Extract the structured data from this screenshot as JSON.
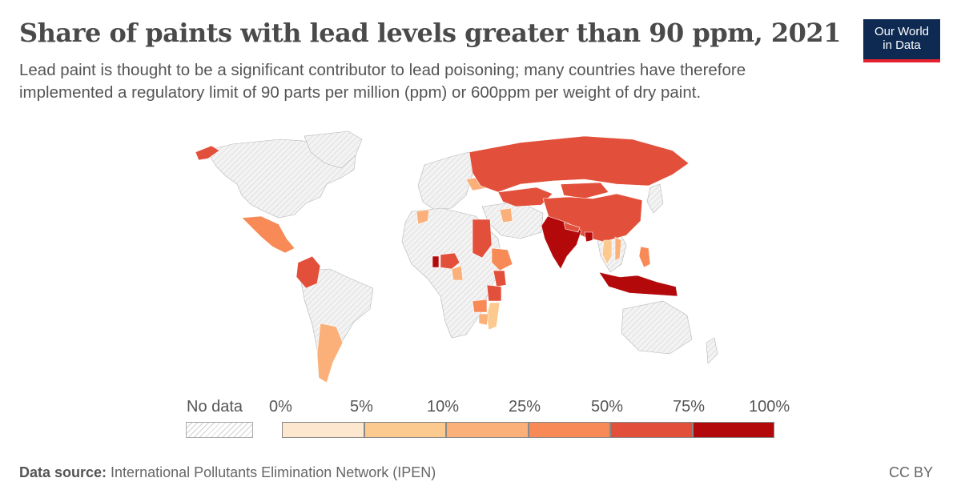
{
  "header": {
    "title": "Share of paints with lead levels greater than 90 ppm, 2021",
    "subtitle": "Lead paint is thought to be a significant contributor to lead poisoning; many countries have therefore implemented a regulatory limit of 90 parts per million (ppm) or 600ppm per weight of dry paint.",
    "logo_line1": "Our World",
    "logo_line2": "in Data"
  },
  "legend": {
    "no_data_label": "No data",
    "ticks": [
      "0%",
      "5%",
      "10%",
      "25%",
      "50%",
      "75%",
      "100%"
    ],
    "bins": [
      {
        "color": "#fde8cf"
      },
      {
        "color": "#fcc98f"
      },
      {
        "color": "#fbb07a"
      },
      {
        "color": "#f78a57"
      },
      {
        "color": "#e2503b"
      },
      {
        "color": "#b4090b"
      }
    ]
  },
  "map": {
    "colors": {
      "no_data_fill": "#f3f3f3",
      "no_data_hatch": "#d3d3d3",
      "border": "#b5b5b5"
    },
    "countries_with_data": [
      {
        "name": "Alaska (USA)",
        "bin": 4
      },
      {
        "name": "Mexico",
        "bin": 3
      },
      {
        "name": "Colombia",
        "bin": 4
      },
      {
        "name": "Argentina",
        "bin": 2
      },
      {
        "name": "Russia",
        "bin": 4
      },
      {
        "name": "Kazakhstan",
        "bin": 4
      },
      {
        "name": "China",
        "bin": 4
      },
      {
        "name": "Mongolia",
        "bin": 4
      },
      {
        "name": "India",
        "bin": 5
      },
      {
        "name": "Nepal",
        "bin": 4
      },
      {
        "name": "Bangladesh",
        "bin": 5
      },
      {
        "name": "Indonesia",
        "bin": 5
      },
      {
        "name": "Philippines",
        "bin": 3
      },
      {
        "name": "Sudan",
        "bin": 4
      },
      {
        "name": "Ethiopia",
        "bin": 3
      },
      {
        "name": "Kenya",
        "bin": 4
      },
      {
        "name": "Tanzania",
        "bin": 4
      },
      {
        "name": "Nigeria",
        "bin": 4
      },
      {
        "name": "Ghana",
        "bin": 5
      },
      {
        "name": "Morocco",
        "bin": 2
      },
      {
        "name": "Ukraine",
        "bin": 2
      },
      {
        "name": "Iraq",
        "bin": 2
      },
      {
        "name": "Zambia",
        "bin": 3
      },
      {
        "name": "Mozambique",
        "bin": 1
      },
      {
        "name": "Zimbabwe",
        "bin": 2
      },
      {
        "name": "Vietnam",
        "bin": 2
      },
      {
        "name": "Thailand",
        "bin": 1
      },
      {
        "name": "Cameroon",
        "bin": 2
      }
    ]
  },
  "footer": {
    "source_label": "Data source:",
    "source_text": " International Pollutants Elimination Network (IPEN)",
    "license": "CC BY"
  }
}
